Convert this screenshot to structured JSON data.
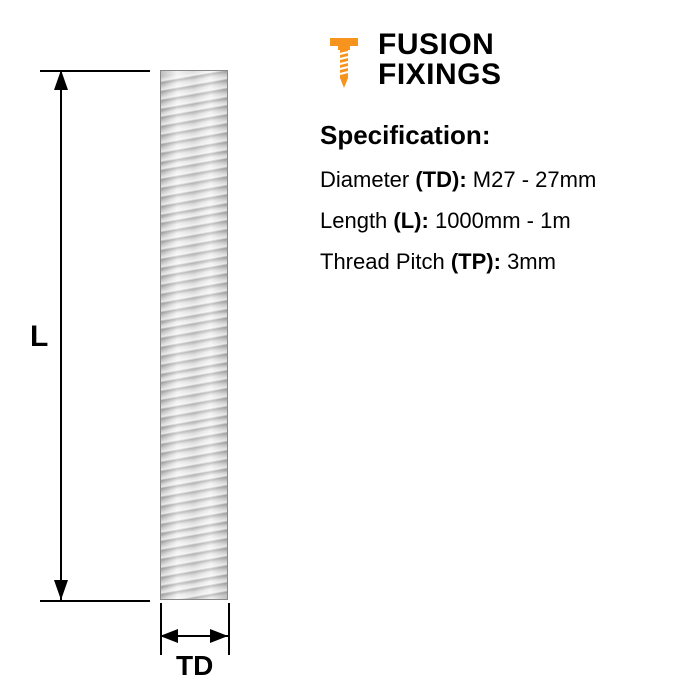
{
  "brand": {
    "line1": "FUSION",
    "line2": "FIXINGS",
    "accent_color": "#f7941d",
    "text_color": "#000000"
  },
  "diagram": {
    "type": "technical-drawing",
    "subject": "threaded-rod",
    "rod_color_light": "#f2f2f2",
    "rod_color_dark": "#bfbfbf",
    "dim_line_color": "#000000",
    "background": "#ffffff",
    "label_L": "L",
    "label_TD": "TD",
    "label_fontsize": 30,
    "thread_count_visible": 60
  },
  "spec": {
    "heading": "Specification:",
    "rows": [
      {
        "name": "Diameter",
        "symbol": "(TD):",
        "value": "M27 - 27mm"
      },
      {
        "name": "Length",
        "symbol": "(L):",
        "value": "1000mm - 1m"
      },
      {
        "name": "Thread Pitch",
        "symbol": "(TP):",
        "value": "3mm"
      }
    ],
    "heading_fontsize": 26,
    "row_fontsize": 22
  }
}
